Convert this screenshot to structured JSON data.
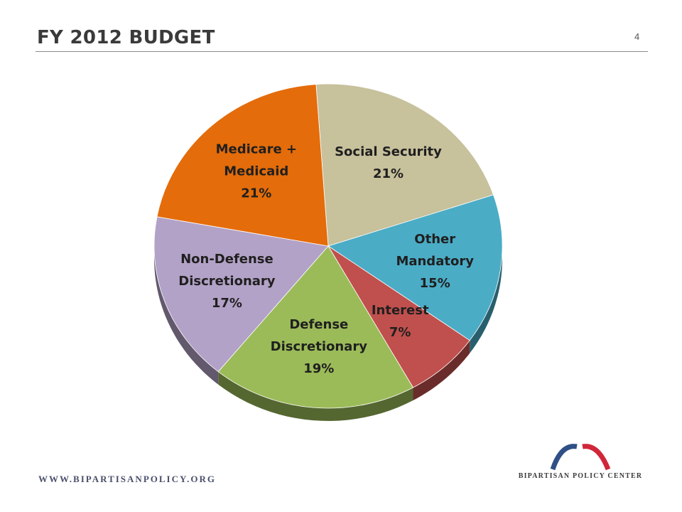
{
  "header": {
    "title": "FY 2012 BUDGET",
    "page_number": "4"
  },
  "footer": {
    "url": "WWW.BIPARTISANPOLICY.ORG",
    "logo_text": "BIPARTISAN POLICY CENTER"
  },
  "colors": {
    "logo_blue": "#2f4f86",
    "logo_red": "#d1263a"
  },
  "chart_data": {
    "type": "pie",
    "title": "",
    "slices": [
      {
        "label": "Social Security",
        "value": 21,
        "value_label": "21%",
        "color": "#c7c19c",
        "label_lines": [
          "Social Security",
          "21%"
        ]
      },
      {
        "label": "Other Mandatory",
        "value": 15,
        "value_label": "15%",
        "color": "#4bacc6",
        "label_lines": [
          "Other",
          "Mandatory",
          "15%"
        ]
      },
      {
        "label": "Interest",
        "value": 7,
        "value_label": "7%",
        "color": "#c0504d",
        "label_lines": [
          "Interest",
          "7%"
        ]
      },
      {
        "label": "Defense Discretionary",
        "value": 19,
        "value_label": "19%",
        "color": "#9bbb59",
        "label_lines": [
          "Defense",
          "Discretionary",
          "19%"
        ]
      },
      {
        "label": "Non-Defense Discretionary",
        "value": 17,
        "value_label": "17%",
        "color": "#b3a2c7",
        "label_lines": [
          "Non-Defense",
          "Discretionary",
          "17%"
        ]
      },
      {
        "label": "Medicare + Medicaid",
        "value": 21,
        "value_label": "21%",
        "color": "#e46c0a",
        "label_lines": [
          "Medicare +",
          "Medicaid",
          "21%"
        ]
      }
    ]
  }
}
